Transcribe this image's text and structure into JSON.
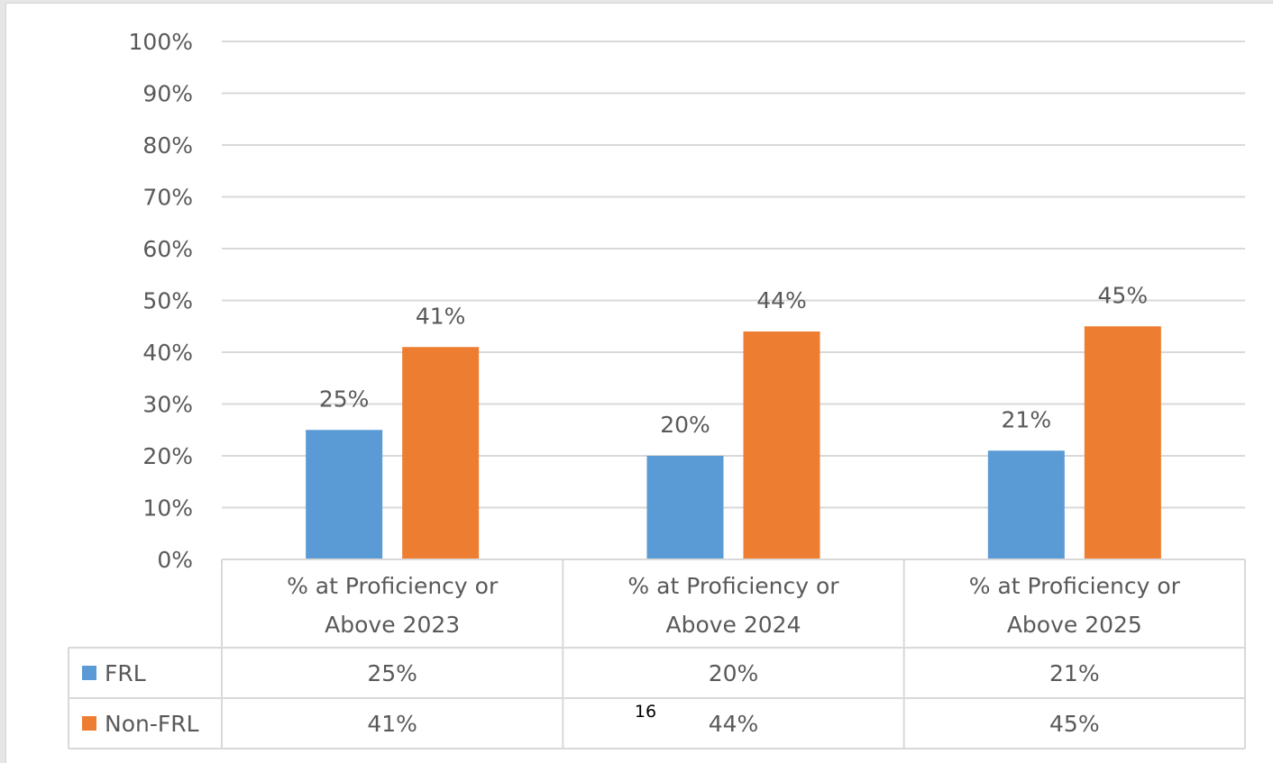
{
  "page_number": "16",
  "chart_data": {
    "type": "bar",
    "categories": [
      "% at Proficiency or Above 2023",
      "% at Proficiency or Above 2024",
      "% at Proficiency or Above 2025"
    ],
    "category_lines": [
      [
        "% at Proficiency or",
        "Above 2023"
      ],
      [
        "% at Proficiency or",
        "Above 2024"
      ],
      [
        "% at Proficiency or",
        "Above 2025"
      ]
    ],
    "series": [
      {
        "name": "FRL",
        "values": [
          25,
          20,
          21
        ],
        "labels": [
          "25%",
          "20%",
          "21%"
        ],
        "color": "#5b9bd5"
      },
      {
        "name": "Non-FRL",
        "values": [
          41,
          44,
          45
        ],
        "labels": [
          "41%",
          "44%",
          "45%"
        ],
        "color": "#ed7d31"
      }
    ],
    "ylim": [
      0,
      100
    ],
    "yticks": [
      "0%",
      "10%",
      "20%",
      "30%",
      "40%",
      "50%",
      "60%",
      "70%",
      "80%",
      "90%",
      "100%"
    ],
    "title": "",
    "xlabel": "",
    "ylabel": "",
    "grid": true,
    "legend": "data-table",
    "colors": {
      "gridline": "#d9d9d9",
      "text": "#595959",
      "table_border": "#d9d9d9"
    }
  }
}
